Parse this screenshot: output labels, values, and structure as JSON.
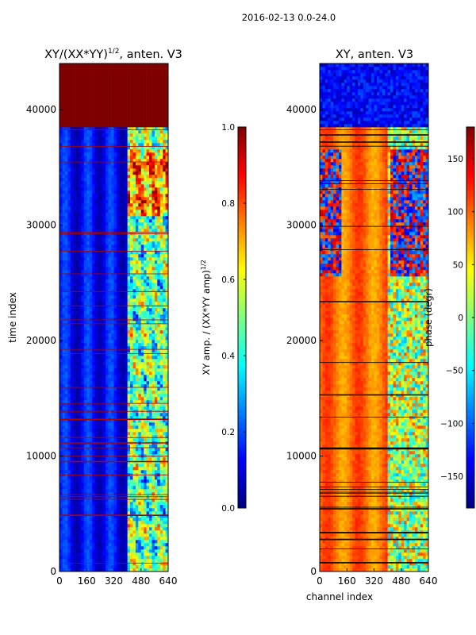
{
  "figure_title": "2016-02-13 0.0-24.0",
  "colors": {
    "jet": [
      "#00007f",
      "#0000ff",
      "#007fff",
      "#00ffff",
      "#7fff7f",
      "#ffff00",
      "#ff7f00",
      "#ff0000",
      "#7f0000"
    ]
  },
  "chart_data": [
    {
      "type": "heatmap",
      "id": "amp",
      "title": "XY/(XX*YY)",
      "title_superscript": "1/2",
      "title_suffix": ", anten. V3",
      "xlabel": "",
      "ylabel": "time index",
      "x_ticks": [
        0,
        160,
        320,
        480,
        640
      ],
      "y_ticks": [
        0,
        10000,
        20000,
        30000,
        40000
      ],
      "xlim": [
        0,
        640
      ],
      "ylim": [
        0,
        44000
      ],
      "colorbar": {
        "label": "XY amp. / (XX*YY amp)",
        "label_superscript": "1/2",
        "range": [
          0.0,
          1.0
        ],
        "ticks": [
          0.0,
          0.2,
          0.4,
          0.6,
          0.8,
          1.0
        ],
        "tick_labels": [
          "0.0",
          "0.2",
          "0.4",
          "0.6",
          "0.8",
          "1.0"
        ]
      }
    },
    {
      "type": "heatmap",
      "id": "phase",
      "title": "XY, anten. V3",
      "xlabel": "channel index",
      "ylabel": "",
      "x_ticks": [
        0,
        160,
        320,
        480,
        640
      ],
      "y_ticks": [
        0,
        10000,
        20000,
        30000,
        40000
      ],
      "xlim": [
        0,
        640
      ],
      "ylim": [
        0,
        44000
      ],
      "colorbar": {
        "label": "phase (degr)",
        "range": [
          -180,
          180
        ],
        "ticks": [
          150,
          100,
          50,
          0,
          -50,
          -100,
          -150
        ],
        "tick_labels": [
          "150",
          "100",
          "50",
          "0",
          "−50",
          "−100",
          "−150"
        ]
      }
    }
  ]
}
